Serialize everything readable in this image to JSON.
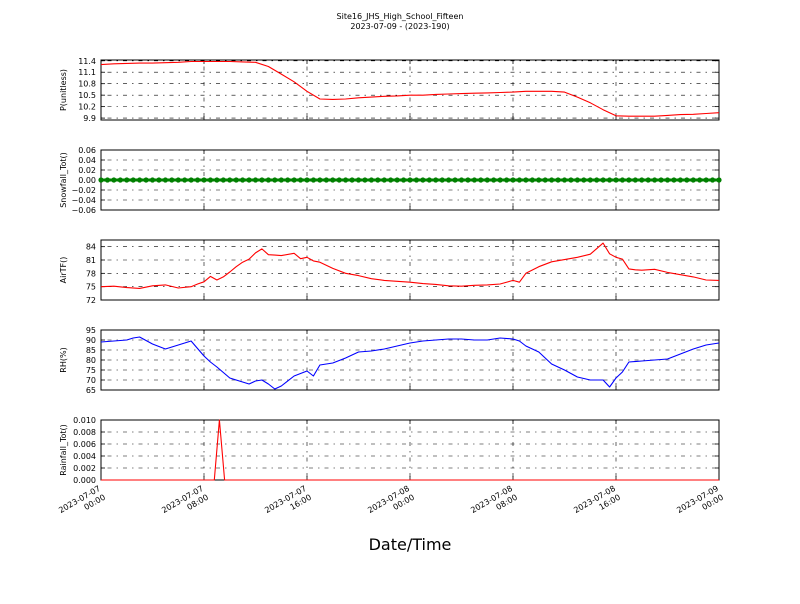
{
  "title": "Site16_JHS_High_School_Fifteen",
  "subtitle": "2023-07-09 - (2023-190)",
  "xlabel": "Date/Time",
  "xticks": [
    {
      "x": 0,
      "l1": "2023-07-07",
      "l2": "00:00"
    },
    {
      "x": 8,
      "l1": "2023-07-07",
      "l2": "08:00"
    },
    {
      "x": 16,
      "l1": "2023-07-07",
      "l2": "16:00"
    },
    {
      "x": 24,
      "l1": "2023-07-08",
      "l2": "00:00"
    },
    {
      "x": 32,
      "l1": "2023-07-08",
      "l2": "08:00"
    },
    {
      "x": 40,
      "l1": "2023-07-08",
      "l2": "16:00"
    },
    {
      "x": 48,
      "l1": "2023-07-09",
      "l2": "00:00"
    }
  ],
  "chart_data": [
    {
      "type": "line",
      "ylabel": "P(unitless)",
      "ylim": [
        9.85,
        11.42
      ],
      "yticks": [
        9.9,
        10.2,
        10.5,
        10.8,
        11.1,
        11.4
      ],
      "tick_labels": [
        "9.9",
        "10.2",
        "10.5",
        "10.8",
        "11.1",
        "11.4"
      ],
      "color": "#ff0000",
      "x": [
        0,
        1,
        2,
        3,
        4,
        5,
        6,
        7,
        8,
        9,
        10,
        11,
        12,
        13,
        14,
        15,
        16,
        17,
        18,
        19,
        20,
        21,
        22,
        23,
        24,
        25,
        26,
        27,
        28,
        29,
        30,
        31,
        32,
        33,
        34,
        35,
        36,
        37,
        38,
        39,
        40,
        41,
        42,
        43,
        44,
        45,
        46,
        47,
        48
      ],
      "values": [
        11.3,
        11.32,
        11.33,
        11.34,
        11.34,
        11.35,
        11.36,
        11.38,
        11.38,
        11.38,
        11.38,
        11.37,
        11.36,
        11.25,
        11.05,
        10.85,
        10.6,
        10.4,
        10.39,
        10.4,
        10.43,
        10.45,
        10.47,
        10.48,
        10.5,
        10.5,
        10.52,
        10.53,
        10.54,
        10.55,
        10.56,
        10.57,
        10.58,
        10.6,
        10.6,
        10.6,
        10.58,
        10.45,
        10.3,
        10.12,
        9.96,
        9.95,
        9.95,
        9.95,
        9.97,
        9.99,
        10.0,
        10.02,
        10.04
      ]
    },
    {
      "type": "scatter",
      "ylabel": "Snowfall_Tot()",
      "ylim": [
        -0.06,
        0.06
      ],
      "yticks": [
        -0.06,
        -0.04,
        -0.02,
        0.0,
        0.02,
        0.04,
        0.06
      ],
      "tick_labels": [
        "−0.06",
        "−0.04",
        "−0.02",
        "0.00",
        "0.02",
        "0.04",
        "0.06"
      ],
      "color": "#008000",
      "x": [
        0,
        0.5,
        1,
        1.5,
        2,
        2.5,
        3,
        3.5,
        4,
        4.5,
        5,
        5.5,
        6,
        6.5,
        7,
        7.5,
        8,
        8.5,
        9,
        9.5,
        10,
        10.5,
        11,
        11.5,
        12,
        12.5,
        13,
        13.5,
        14,
        14.5,
        15,
        15.5,
        16,
        16.5,
        17,
        17.5,
        18,
        18.5,
        19,
        19.5,
        20,
        20.5,
        21,
        21.5,
        22,
        22.5,
        23,
        23.5,
        24,
        24.5,
        25,
        25.5,
        26,
        26.5,
        27,
        27.5,
        28,
        28.5,
        29,
        29.5,
        30,
        30.5,
        31,
        31.5,
        32,
        32.5,
        33,
        33.5,
        34,
        34.5,
        35,
        35.5,
        36,
        36.5,
        37,
        37.5,
        38,
        38.5,
        39,
        39.5,
        40,
        40.5,
        41,
        41.5,
        42,
        42.5,
        43,
        43.5,
        44,
        44.5,
        45,
        45.5,
        46,
        46.5,
        47,
        47.5,
        48
      ],
      "values": [
        0,
        0,
        0,
        0,
        0,
        0,
        0,
        0,
        0,
        0,
        0,
        0,
        0,
        0,
        0,
        0,
        0,
        0,
        0,
        0,
        0,
        0,
        0,
        0,
        0,
        0,
        0,
        0,
        0,
        0,
        0,
        0,
        0,
        0,
        0,
        0,
        0,
        0,
        0,
        0,
        0,
        0,
        0,
        0,
        0,
        0,
        0,
        0,
        0,
        0,
        0,
        0,
        0,
        0,
        0,
        0,
        0,
        0,
        0,
        0,
        0,
        0,
        0,
        0,
        0,
        0,
        0,
        0,
        0,
        0,
        0,
        0,
        0,
        0,
        0,
        0,
        0,
        0,
        0,
        0,
        0,
        0,
        0,
        0,
        0,
        0,
        0,
        0,
        0,
        0,
        0,
        0,
        0,
        0,
        0,
        0,
        0
      ]
    },
    {
      "type": "line",
      "ylabel": "AirTF()",
      "ylim": [
        72,
        85.5
      ],
      "yticks": [
        72,
        75,
        78,
        81,
        84
      ],
      "tick_labels": [
        "72",
        "75",
        "78",
        "81",
        "84"
      ],
      "color": "#ff0000",
      "x": [
        0,
        1,
        2,
        3,
        4,
        5,
        6,
        7,
        7.5,
        8,
        8.5,
        9,
        9.5,
        10,
        10.5,
        11,
        11.5,
        12,
        12.5,
        13,
        13.5,
        14,
        15,
        15.5,
        16,
        16.5,
        17,
        18,
        19,
        20,
        21,
        22,
        23,
        24,
        25,
        26,
        27,
        28,
        29,
        30,
        31,
        32,
        32.5,
        33,
        34,
        35,
        36,
        37,
        38,
        39,
        39.5,
        40,
        40.5,
        41,
        41.5,
        42,
        43,
        44,
        45,
        46,
        47,
        48
      ],
      "values": [
        75.0,
        75.1,
        74.8,
        74.6,
        75.2,
        75.4,
        74.7,
        75.0,
        75.6,
        76.1,
        77.3,
        76.5,
        77.2,
        78.3,
        79.5,
        80.5,
        81.2,
        82.6,
        83.5,
        82.2,
        82.1,
        82.0,
        82.5,
        81.3,
        81.6,
        80.8,
        80.5,
        79.1,
        78.0,
        77.5,
        76.8,
        76.4,
        76.2,
        76.0,
        75.7,
        75.5,
        75.2,
        75.1,
        75.3,
        75.4,
        75.6,
        76.4,
        76.0,
        78.0,
        79.5,
        80.6,
        81.1,
        81.6,
        82.3,
        84.8,
        82.4,
        81.6,
        81.2,
        79.0,
        78.8,
        78.7,
        78.9,
        78.2,
        77.7,
        77.2,
        76.5,
        76.4
      ]
    },
    {
      "type": "line",
      "ylabel": "RH(%)",
      "ylim": [
        65,
        95
      ],
      "yticks": [
        65,
        70,
        75,
        80,
        85,
        90,
        95
      ],
      "tick_labels": [
        "65",
        "70",
        "75",
        "80",
        "85",
        "90",
        "95"
      ],
      "color": "#0000ff",
      "x": [
        0,
        1,
        2,
        2.5,
        3,
        4,
        5,
        6,
        7,
        8,
        8.5,
        9,
        10,
        11,
        11.5,
        12,
        12.5,
        13,
        13.5,
        14,
        15,
        16,
        16.5,
        17,
        18,
        19,
        20,
        21,
        22,
        23,
        24,
        25,
        26,
        27,
        28,
        29,
        30,
        31,
        32,
        32.5,
        33,
        34,
        35,
        36,
        37,
        38,
        39,
        39.5,
        40,
        40.5,
        41,
        42,
        43,
        44,
        45,
        46,
        47,
        48
      ],
      "values": [
        89.0,
        89.5,
        90.0,
        91.0,
        91.5,
        88.0,
        85.5,
        87.5,
        89.5,
        82.0,
        79.0,
        76.5,
        71.0,
        69.0,
        68.0,
        69.5,
        70.0,
        68.0,
        65.5,
        67.0,
        72.0,
        74.5,
        72.0,
        77.5,
        78.5,
        81.0,
        84.0,
        84.5,
        85.5,
        87.0,
        88.5,
        89.5,
        90.0,
        90.5,
        90.5,
        90.0,
        90.0,
        91.0,
        90.5,
        89.5,
        87.0,
        84.0,
        78.0,
        75.0,
        71.5,
        70.0,
        70.0,
        66.5,
        71.0,
        74.0,
        79.0,
        79.5,
        80.0,
        80.5,
        83.0,
        85.5,
        87.5,
        88.5
      ]
    },
    {
      "type": "line",
      "ylabel": "Rainfall_Tot()",
      "ylim": [
        0,
        0.01
      ],
      "yticks": [
        0.0,
        0.002,
        0.004,
        0.006,
        0.008,
        0.01
      ],
      "tick_labels": [
        "0.000",
        "0.002",
        "0.004",
        "0.006",
        "0.008",
        "0.010"
      ],
      "color": "#ff0000",
      "x": [
        0,
        8.8,
        9.2,
        9.6,
        48
      ],
      "values": [
        0,
        0,
        0.01,
        0,
        0
      ]
    }
  ]
}
